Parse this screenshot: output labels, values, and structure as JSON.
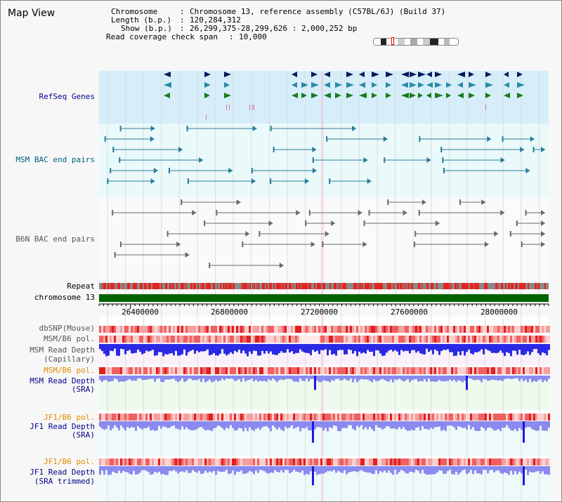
{
  "view_title": "Map View",
  "info": {
    "chromosome_key": "Chromosome",
    "chromosome_val": "Chromosome 13, reference assembly (C57BL/6J) (Build 37)",
    "length_key": "Length (b.p.)",
    "length_val": "120,284,312",
    "show_key": "Show (b.p.)",
    "show_val": "26,299,375-28,299,626 : 2,000,252 bp",
    "coverage_key": "Read coverage check span",
    "coverage_val": "10,000"
  },
  "tracks": {
    "refseq": "RefSeq Genes",
    "msm_bac": "MSM BAC end pairs",
    "b6n_bac": "B6N BAC end pairs",
    "repeat": "Repeat",
    "chromosome": "chromosome 13",
    "dbsnp": "dbSNP(Mouse)",
    "msm_b6_pol": "MSM/B6 pol.",
    "msm_depth_cap_1": "MSM Read Depth",
    "msm_depth_cap_2": "(Capillary)",
    "msm_b6_pol_2": "MSM/B6 pol.",
    "msm_depth_sra_1": "MSM Read Depth",
    "msm_depth_sra_2": "(SRA)",
    "jf1_b6_pol": "JF1/B6 pol.",
    "jf1_depth_sra_1": "JF1 Read Depth",
    "jf1_depth_sra_2": "(SRA)",
    "jf1_b6_pol_2": "JF1/B6 pol.",
    "jf1_depth_trim_1": "JF1 Read Depth",
    "jf1_depth_trim_2": "(SRA trimmed)"
  },
  "axis_ticks": [
    "26400000",
    "26800000",
    "27200000",
    "27600000",
    "28000000"
  ],
  "colors": {
    "refseq_bg": "#d6eefa",
    "bac_bg": "#eafafa",
    "chromosome_bar": "#006400",
    "repeat_red": "#e8221c",
    "depth_blue": "#2a2ae6",
    "depth_light": "#8a8af0",
    "pol_pink": "#f4a0a0",
    "label_orange": "#e08a00"
  }
}
